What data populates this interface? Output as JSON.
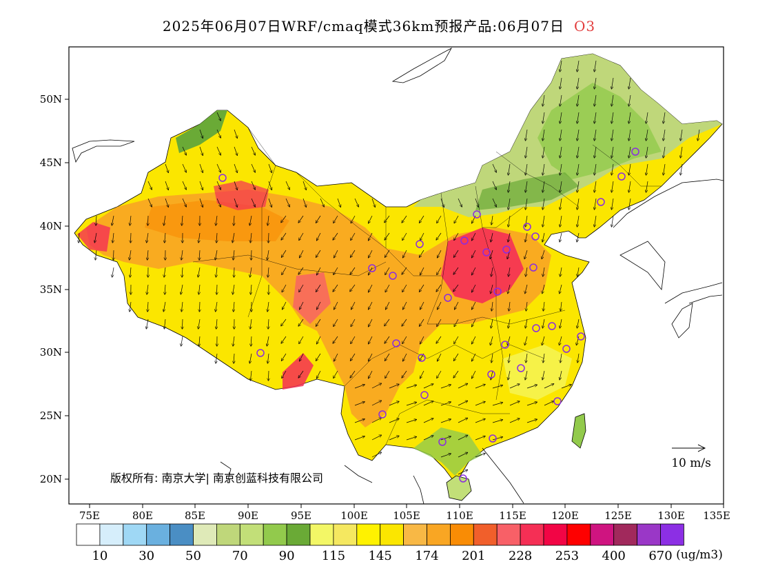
{
  "title": "2025年06月07日WRF/cmaq模式36km预报产品:06月07日",
  "pollutant": "O3",
  "lat_labels": [
    "50N",
    "45N",
    "40N",
    "35N",
    "30N",
    "25N",
    "20N"
  ],
  "lon_labels": [
    "75E",
    "80E",
    "85E",
    "90E",
    "95E",
    "100E",
    "105E",
    "110E",
    "115E",
    "120E",
    "125E",
    "130E",
    "135E"
  ],
  "wind_scale": {
    "label": "10 m/s"
  },
  "copyright": "版权所有: 南京大学| 南京创蓝科技有限公司",
  "legend": {
    "colors": [
      "#ffffff",
      "#d6eefb",
      "#9fd8f5",
      "#6ab0df",
      "#4a8ec4",
      "#dfeab8",
      "#bfd77a",
      "#c2df78",
      "#92ca4c",
      "#6aaa36",
      "#f3f766",
      "#f5e860",
      "#fff200",
      "#fbe600",
      "#f8b845",
      "#f9a623",
      "#f98c05",
      "#f15f2b",
      "#f86067",
      "#f52f55",
      "#f20545",
      "#fe0000",
      "#cf1480",
      "#a1295c",
      "#9a37c7",
      "#8c2fe4"
    ],
    "labels": [
      "10",
      "30",
      "50",
      "70",
      "90",
      "115",
      "145",
      "174",
      "201",
      "228",
      "253",
      "400",
      "670"
    ],
    "units": "(ug/m3)"
  }
}
